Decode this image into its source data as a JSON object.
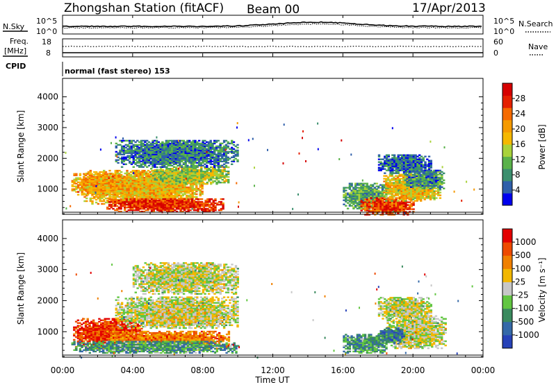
{
  "header": {
    "station": "Zhongshan Station (fitACF)",
    "beam": "Beam 00",
    "date": "17/Apr/2013"
  },
  "top_panels": {
    "nsky_label": "N.Sky",
    "nsearch_label": "N.Search",
    "freq_label_line1": "Freq.",
    "freq_label_line2": "[MHz]",
    "nave_label": "Nave",
    "cpid_label": "CPID",
    "cpid_value": "normal (fast stereo) 153",
    "nsky_ticks": [
      "10^5",
      "10^0"
    ],
    "nsearch_ticks": [
      "10^5",
      "10^0"
    ],
    "freq_ticks": [
      "18",
      "8"
    ],
    "nave_ticks": [
      "60",
      "0"
    ]
  },
  "chart_data": [
    {
      "type": "heatmap",
      "panel": "power",
      "ylabel": "Slant Range [km]",
      "xlabel": "Time UT",
      "x_ticks": [
        "00:00",
        "04:00",
        "08:00",
        "12:00",
        "16:00",
        "20:00",
        "00:00"
      ],
      "ylim": [
        180,
        4600
      ],
      "y_ticks": [
        "1000",
        "2000",
        "3000",
        "4000"
      ],
      "colorbar": {
        "label": "Power [dB]",
        "ticks": [
          "4",
          "8",
          "12",
          "16",
          "20",
          "24",
          "28"
        ],
        "colors": [
          "#0000ee",
          "#2f5faa",
          "#3b8f6e",
          "#5ab24a",
          "#a9d23a",
          "#f5b800",
          "#f59a00",
          "#f56a00",
          "#e52000",
          "#d60000"
        ]
      },
      "blobs": [
        {
          "t0": 1.2,
          "t1": 8.0,
          "r0": 500,
          "r1": 1600,
          "val": 0.58
        },
        {
          "t0": 2.5,
          "t1": 9.2,
          "r0": 250,
          "r1": 700,
          "val": 0.86
        },
        {
          "t0": 5.0,
          "t1": 9.5,
          "r0": 1150,
          "r1": 1700,
          "val": 0.44
        },
        {
          "t0": 0.5,
          "t1": 3.5,
          "r0": 800,
          "r1": 1500,
          "val": 0.63
        },
        {
          "t0": 3.0,
          "t1": 10.0,
          "r0": 1700,
          "r1": 2600,
          "val": 0.22
        },
        {
          "t0": 16.0,
          "t1": 18.5,
          "r0": 350,
          "r1": 1200,
          "val": 0.3
        },
        {
          "t0": 17.0,
          "t1": 20.0,
          "r0": 150,
          "r1": 700,
          "val": 0.84
        },
        {
          "t0": 18.3,
          "t1": 21.5,
          "r0": 600,
          "r1": 1500,
          "val": 0.55
        },
        {
          "t0": 19.5,
          "t1": 21.8,
          "r0": 1000,
          "r1": 1600,
          "val": 0.25
        },
        {
          "t0": 18.0,
          "t1": 21.0,
          "r0": 1500,
          "r1": 2100,
          "val": 0.18
        }
      ]
    },
    {
      "type": "heatmap",
      "panel": "velocity",
      "ylabel": "Slant Range [km]",
      "xlabel": "Time UT",
      "x_ticks": [
        "00:00",
        "04:00",
        "08:00",
        "12:00",
        "16:00",
        "20:00",
        "00:00"
      ],
      "ylim": [
        180,
        4600
      ],
      "y_ticks": [
        "1000",
        "2000",
        "3000",
        "4000"
      ],
      "colorbar": {
        "label": "Velocity [m s⁻¹]",
        "ticks": [
          "1000",
          "500",
          "100",
          "25",
          "-25",
          "-100",
          "-500",
          "-1000"
        ],
        "colors": [
          "#2742b8",
          "#3569a8",
          "#3a8a5e",
          "#62c641",
          "#c7c7c7",
          "#f2b700",
          "#f08000",
          "#ee4a00",
          "#e30000"
        ]
      },
      "blobs": [
        {
          "t0": 0.6,
          "t1": 4.5,
          "r0": 450,
          "r1": 1400,
          "val": 0.88
        },
        {
          "t0": 2.5,
          "t1": 9.5,
          "r0": 400,
          "r1": 1000,
          "val": 0.75
        },
        {
          "t0": 0.5,
          "t1": 10.0,
          "r0": 300,
          "r1": 700,
          "val": 0.3
        },
        {
          "t0": 3.0,
          "t1": 10.0,
          "r0": 1100,
          "r1": 2100,
          "val": 0.5
        },
        {
          "t0": 5.0,
          "t1": 9.0,
          "r0": 1200,
          "r1": 1700,
          "val": 0.55
        },
        {
          "t0": 4.0,
          "t1": 10.0,
          "r0": 2200,
          "r1": 3200,
          "val": 0.5
        },
        {
          "t0": 16.0,
          "t1": 18.5,
          "r0": 300,
          "r1": 900,
          "val": 0.3
        },
        {
          "t0": 18.5,
          "t1": 21.8,
          "r0": 450,
          "r1": 1500,
          "val": 0.5
        },
        {
          "t0": 18.0,
          "t1": 21.0,
          "r0": 1400,
          "r1": 2100,
          "val": 0.5
        },
        {
          "t0": 18.0,
          "t1": 19.5,
          "r0": 600,
          "r1": 1100,
          "val": 0.2
        }
      ]
    }
  ]
}
